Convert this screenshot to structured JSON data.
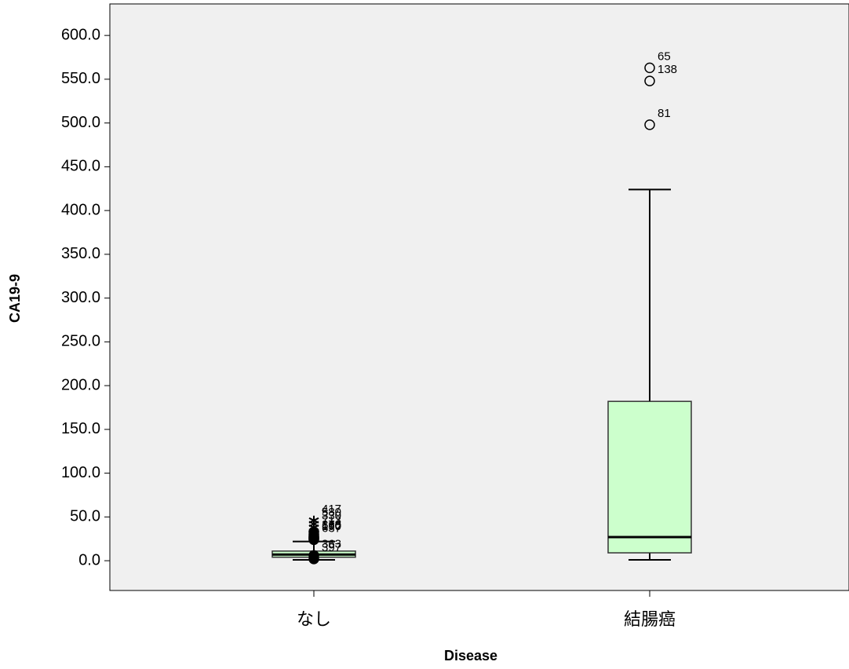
{
  "chart_data": {
    "type": "box",
    "x_label": "Disease",
    "y_label": "CA19-9",
    "categories": [
      "なし",
      "結腸癌"
    ],
    "boxes": [
      {
        "min": 1,
        "q1": 4,
        "median": 7,
        "q3": 11,
        "max": 22,
        "outliers": [
          {
            "value": 46,
            "case": "417",
            "extreme": true
          },
          {
            "value": 42,
            "case": "580",
            "extreme": true
          },
          {
            "value": 38,
            "case": "330",
            "extreme": true
          },
          {
            "value": 33,
            "case": "713"
          },
          {
            "value": 30
          },
          {
            "value": 28,
            "case": "378"
          },
          {
            "value": 27,
            "case": "680"
          },
          {
            "value": 26,
            "case": "190"
          },
          {
            "value": 25
          },
          {
            "value": 24,
            "case": "637"
          },
          {
            "value": 6,
            "case": "363"
          },
          {
            "value": 2,
            "case": "397"
          }
        ]
      },
      {
        "min": 1,
        "q1": 9,
        "median": 27,
        "q3": 182,
        "max": 424,
        "outliers": [
          {
            "value": 563,
            "case": "65"
          },
          {
            "value": 548,
            "case": "138"
          },
          {
            "value": 498,
            "case": "81"
          }
        ]
      }
    ],
    "box_color": "#ccffcc",
    "ylim": [
      -34,
      636
    ],
    "yticks": [
      {
        "value": 0,
        "label": "0.0"
      },
      {
        "value": 50,
        "label": "50.0"
      },
      {
        "value": 100,
        "label": "100.0"
      },
      {
        "value": 150,
        "label": "150.0"
      },
      {
        "value": 200,
        "label": "200.0"
      },
      {
        "value": 250,
        "label": "250.0"
      },
      {
        "value": 300,
        "label": "300.0"
      },
      {
        "value": 350,
        "label": "350.0"
      },
      {
        "value": 400,
        "label": "400.0"
      },
      {
        "value": 450,
        "label": "450.0"
      },
      {
        "value": 500,
        "label": "500.0"
      },
      {
        "value": 550,
        "label": "550.0"
      },
      {
        "value": 600,
        "label": "600.0"
      }
    ]
  }
}
